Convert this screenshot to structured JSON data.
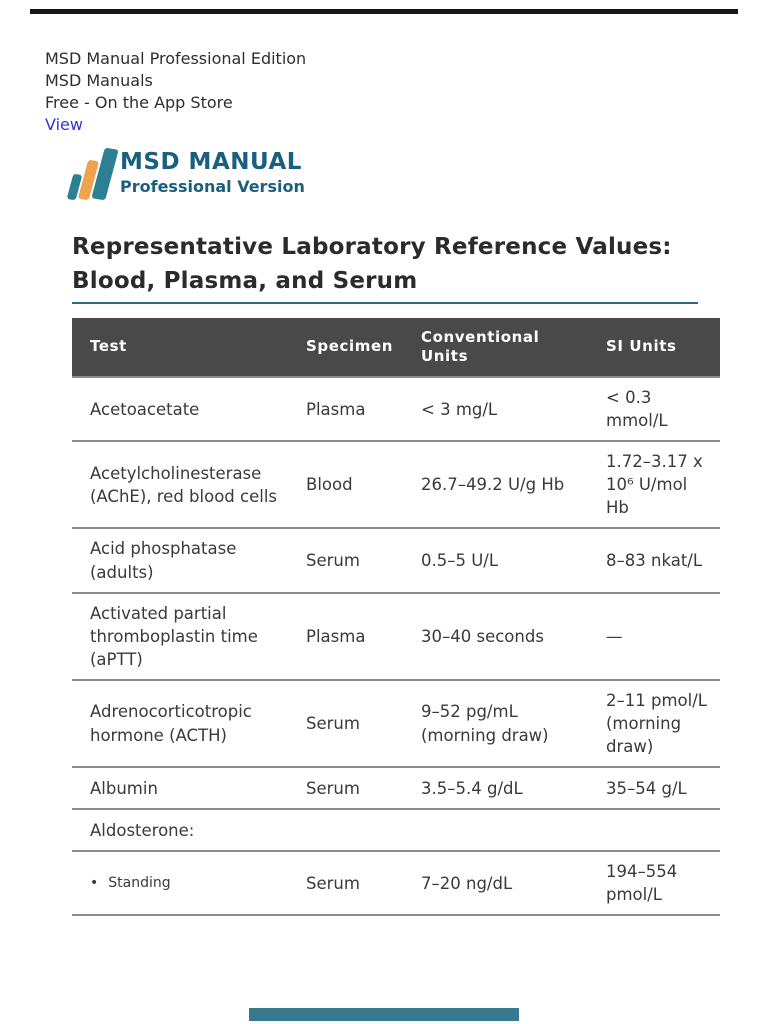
{
  "colors": {
    "top_divider": "#161616",
    "link_blue": "#3734d2",
    "logo_teal": "#2d7f92",
    "logo_orange": "#f0a34f",
    "logo_text": "#1a5f7e",
    "heading_underline": "#2e6880",
    "table_header_bg": "#49494a",
    "row_divider": "#8c8c8c",
    "bottom_bar": "#37798e"
  },
  "app_banner": {
    "line1": "MSD Manual Professional Edition",
    "line2": "MSD Manuals",
    "line3": "Free - On the App Store",
    "link_label": "View"
  },
  "logo": {
    "title": "MSD MANUAL",
    "subtitle": "Professional Version"
  },
  "heading": {
    "line1": "Representative Laboratory Reference Values:",
    "line2": "Blood, Plasma, and Serum"
  },
  "table": {
    "columns": [
      "Test",
      "Specimen",
      "Conventional Units",
      "SI Units"
    ],
    "rows": [
      {
        "test": "Acetoacetate",
        "specimen": "Plasma",
        "conventional": "< 3 mg/L",
        "si": "< 0.3 mmol/L"
      },
      {
        "test": "Acetylcholinesterase (AChE), red blood cells",
        "specimen": "Blood",
        "conventional": "26.7–49.2 U/g Hb",
        "si": "1.72–3.17 x 10⁶ U/mol Hb"
      },
      {
        "test": "Acid phosphatase (adults)",
        "specimen": "Serum",
        "conventional": "0.5–5 U/L",
        "si": "8–83 nkat/L"
      },
      {
        "test": "Activated partial thromboplastin time (aPTT)",
        "specimen": "Plasma",
        "conventional": "30–40 seconds",
        "si": "—"
      },
      {
        "test": "Adrenocorticotropic hormone (ACTH)",
        "specimen": "Serum",
        "conventional": "9–52 pg/mL (morning draw)",
        "si": "2–11 pmol/L (morning draw)"
      },
      {
        "test": "Albumin",
        "specimen": "Serum",
        "conventional": "3.5–5.4 g/dL",
        "si": "35–54 g/L"
      },
      {
        "test": "Aldosterone:",
        "specimen": "",
        "conventional": "",
        "si": "",
        "section": true
      },
      {
        "test": "Standing",
        "specimen": "Serum",
        "conventional": "7–20 ng/dL",
        "si": "194–554 pmol/L",
        "bullet": true
      }
    ]
  }
}
